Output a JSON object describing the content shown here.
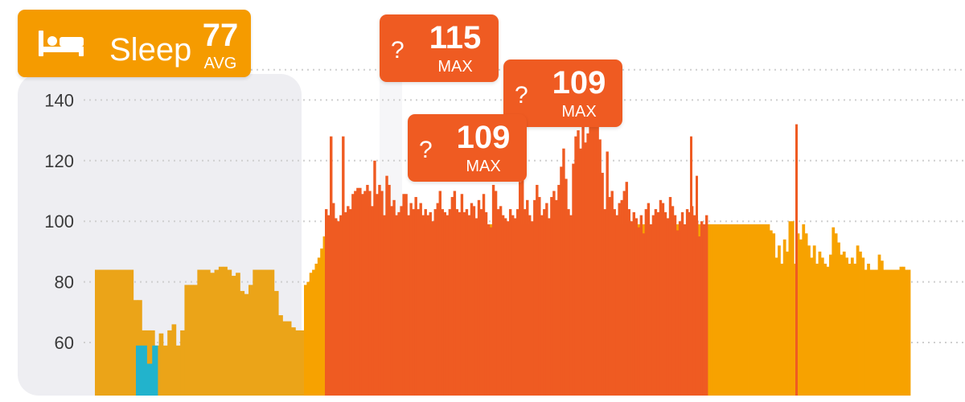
{
  "header": {
    "sleep_label": "Sleep",
    "avg_value": "77",
    "avg_unit": "AVG",
    "icon": "bed-icon"
  },
  "markers": [
    {
      "icon": "question-mark",
      "glyph": "?",
      "value": "115",
      "unit": "MAX"
    },
    {
      "icon": "question-mark",
      "glyph": "?",
      "value": "109",
      "unit": "MAX"
    },
    {
      "icon": "question-mark",
      "glyph": "?",
      "value": "109",
      "unit": "MAX"
    }
  ],
  "colors": {
    "sleep": "#f5a300",
    "sleep_highlight": "#eba418",
    "light_activity": "#f7a200",
    "active": "#ef5b22",
    "low": "#22b3cc",
    "grid": "#cfcfcf",
    "sleep_panel": "#eeeef2"
  },
  "chart_data": {
    "type": "bar",
    "title": "",
    "xlabel": "",
    "ylabel": "",
    "ylim": [
      46,
      152
    ],
    "yticks": [
      60,
      80,
      100,
      120,
      140
    ],
    "ytick_labels": [
      "60",
      "80",
      "100",
      "120",
      "140"
    ],
    "grid": true,
    "series": [
      {
        "name": "Sleep",
        "values": [
          84,
          84,
          84,
          84,
          84,
          84,
          84,
          84,
          84,
          74,
          74,
          64,
          64,
          64,
          59,
          63,
          59,
          64,
          66,
          59,
          64,
          79,
          79,
          79,
          84,
          84,
          84,
          83,
          84,
          85,
          85,
          84,
          82,
          83,
          77,
          76,
          79,
          84,
          84,
          84,
          84,
          84,
          77,
          69,
          67,
          67,
          65,
          64,
          64
        ]
      },
      {
        "name": "",
        "values": [
          79,
          80,
          83,
          84,
          86,
          88,
          91,
          95,
          99,
          99,
          99,
          99,
          99,
          99,
          99,
          99,
          99,
          99,
          99,
          99,
          99,
          99,
          99,
          99,
          99,
          99,
          99,
          99,
          99,
          99,
          99,
          99,
          99,
          99,
          99,
          99,
          99,
          99,
          99,
          99,
          99,
          99,
          99,
          99,
          99,
          99,
          99,
          99,
          99,
          99,
          99,
          99,
          99,
          99,
          99,
          99,
          99,
          99,
          99,
          99,
          99,
          99,
          99,
          99,
          99,
          99,
          99,
          99,
          99,
          99,
          99,
          99,
          99,
          99,
          99,
          99,
          99,
          99,
          99,
          99,
          99,
          99,
          99,
          99,
          99,
          99,
          99,
          99,
          99,
          99,
          99,
          99,
          99,
          99,
          99,
          99,
          99,
          99,
          99,
          99,
          99,
          99,
          99,
          99,
          99,
          99,
          99,
          99,
          99,
          99,
          99,
          99,
          99,
          99,
          99,
          99,
          99,
          99,
          99,
          99,
          99,
          99,
          99,
          99,
          99,
          99,
          99,
          99,
          99,
          99,
          99,
          99,
          99,
          99,
          99,
          99,
          99,
          99,
          99,
          99,
          99,
          99,
          99,
          99,
          99,
          99,
          99,
          99,
          99,
          99,
          99,
          99,
          99,
          99,
          99,
          99,
          99,
          99,
          99,
          99,
          99,
          99,
          99,
          99,
          99,
          99,
          99,
          99,
          99,
          99,
          99,
          99,
          97,
          96,
          88,
          92,
          86,
          94,
          90,
          100,
          100,
          86,
          96,
          94,
          99,
          96,
          92,
          88,
          92,
          86,
          90,
          88,
          86,
          85,
          89,
          98,
          96,
          93,
          89,
          90,
          88,
          86,
          88,
          86,
          92,
          90,
          88,
          84,
          86,
          84,
          84,
          84,
          89,
          87,
          84,
          84,
          84,
          84,
          84,
          84,
          85,
          85,
          84,
          84
        ]
      },
      {
        "name": "",
        "values": [
          104,
          102,
          128,
          106,
          101,
          100,
          102,
          128,
          103,
          105,
          104,
          109,
          110,
          111,
          111,
          109,
          110,
          112,
          110,
          105,
          120,
          109,
          112,
          110,
          102,
          115,
          112,
          105,
          107,
          102,
          103,
          105,
          109,
          109,
          102,
          106,
          104,
          108,
          104,
          106,
          102,
          104,
          102,
          103,
          100,
          104,
          106,
          110,
          104,
          103,
          102,
          104,
          108,
          110,
          104,
          103,
          109,
          103,
          104,
          102,
          106,
          105,
          101,
          107,
          104,
          109,
          103,
          99,
          98,
          112,
          110,
          104,
          105,
          102,
          101,
          100,
          104,
          102,
          101,
          104,
          113,
          118,
          104,
          107,
          102,
          100,
          107,
          112,
          108,
          102,
          104,
          106,
          101,
          108,
          110,
          107,
          112,
          118,
          124,
          114,
          104,
          102,
          119,
          128,
          130,
          124,
          134,
          126,
          129,
          138,
          140,
          132,
          134,
          127,
          116,
          104,
          123,
          108,
          110,
          104,
          102,
          106,
          107,
          110,
          113,
          104,
          100,
          103,
          101,
          98,
          102,
          96,
          104,
          106,
          99,
          102,
          104,
          103,
          107,
          106,
          103,
          101,
          108,
          105,
          102,
          97,
          100,
          103,
          99,
          104,
          103,
          105,
          102,
          100,
          95,
          100,
          99,
          102
        ]
      },
      {
        "name": "",
        "values": [
          59,
          59,
          53,
          59
        ]
      }
    ]
  }
}
